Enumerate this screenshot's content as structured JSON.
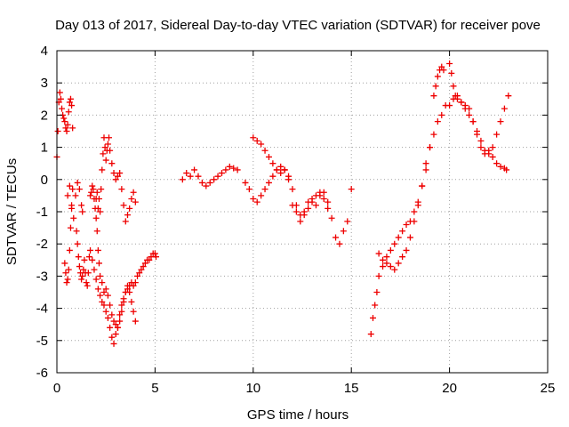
{
  "chart_data": {
    "type": "scatter",
    "title": "Day 013 of 2017, Sidereal Day-to-day VTEC variation (SDTVAR) for receiver pove",
    "xlabel": "GPS time / hours",
    "ylabel": "SDTVAR / TECUs",
    "xlim": [
      0,
      25
    ],
    "ylim": [
      -6,
      4
    ],
    "xticks": [
      "0",
      "5",
      "10",
      "15",
      "20",
      "25"
    ],
    "yticks": [
      "-6",
      "-5",
      "-4",
      "-3",
      "-2",
      "-1",
      "0",
      "1",
      "2",
      "3",
      "4"
    ],
    "grid": true,
    "marker": "+",
    "color": "#ee0000",
    "series": [
      {
        "name": "",
        "x": [
          0.0,
          0.05,
          0.1,
          0.15,
          0.2,
          0.25,
          0.3,
          0.35,
          0.4,
          0.45,
          0.5,
          0.55,
          0.6,
          0.65,
          0.7,
          0.75,
          0.8,
          0.4,
          0.45,
          0.5,
          0.55,
          0.6,
          0.65,
          0.7,
          0.75,
          0.8,
          0.55,
          0.65,
          0.75,
          0.85,
          0.95,
          1.05,
          1.15,
          1.25,
          1.3,
          1.0,
          1.05,
          1.1,
          1.15,
          1.2,
          1.25,
          1.3,
          1.35,
          1.4,
          1.45,
          1.5,
          1.55,
          1.6,
          1.65,
          1.7,
          1.8,
          1.9,
          2.0,
          2.1,
          2.2,
          2.3,
          2.4,
          2.5,
          2.6,
          2.7,
          2.8,
          2.9,
          3.0,
          3.1,
          3.2,
          3.3,
          3.4,
          3.5,
          3.6,
          3.7,
          3.8,
          3.9,
          4.0,
          4.1,
          4.2,
          4.3,
          4.4,
          4.5,
          4.6,
          4.7,
          4.8,
          4.9,
          5.0,
          5.05,
          1.7,
          1.75,
          1.8,
          1.85,
          1.9,
          1.95,
          2.0,
          2.05,
          2.1,
          2.15,
          2.2,
          2.3,
          2.4,
          2.5,
          2.6,
          2.7,
          2.8,
          2.9,
          3.0,
          3.1,
          3.2,
          3.3,
          3.4,
          3.5,
          3.6,
          3.7,
          3.8,
          3.9,
          4.0,
          2.0,
          2.05,
          2.1,
          2.15,
          2.2,
          2.25,
          2.3,
          2.35,
          2.4,
          2.45,
          2.5,
          2.55,
          2.6,
          2.65,
          2.7,
          2.8,
          2.9,
          3.0,
          3.1,
          3.2,
          3.3,
          3.4,
          3.5,
          3.6,
          3.7,
          3.8,
          3.9,
          4.0,
          6.4,
          6.6,
          6.8,
          7.0,
          7.2,
          7.4,
          7.6,
          7.8,
          8.0,
          8.2,
          8.4,
          8.6,
          8.8,
          9.0,
          9.2,
          9.6,
          9.8,
          10.0,
          10.2,
          10.4,
          10.6,
          10.8,
          11.0,
          11.2,
          11.4,
          11.6,
          10.0,
          10.2,
          10.4,
          10.6,
          10.8,
          11.0,
          11.2,
          11.4,
          11.6,
          11.8,
          11.6,
          11.8,
          12.0,
          12.2,
          12.4,
          12.6,
          12.8,
          13.0,
          13.2,
          13.4,
          13.6,
          13.8,
          14.0,
          14.2,
          14.4,
          14.6,
          14.8,
          15.0,
          12.0,
          12.2,
          12.4,
          12.6,
          12.8,
          13.0,
          13.2,
          13.4,
          13.6,
          13.8,
          16.0,
          16.1,
          16.2,
          16.3,
          16.4,
          16.6,
          16.8,
          17.0,
          17.2,
          17.4,
          17.6,
          17.8,
          18.0,
          18.2,
          18.4,
          18.6,
          18.8,
          19.0,
          19.2,
          19.4,
          19.6,
          19.8,
          20.0,
          20.2,
          20.4,
          20.6,
          20.8,
          21.0,
          21.2,
          21.4,
          21.6,
          21.8,
          22.0,
          22.2,
          22.4,
          22.6,
          22.8,
          22.9,
          16.4,
          16.6,
          16.8,
          17.0,
          17.2,
          17.4,
          17.6,
          17.8,
          18.0,
          18.2,
          18.4,
          18.6,
          18.8,
          19.0,
          19.2,
          19.3,
          19.4,
          19.5,
          19.6,
          19.7,
          20.0,
          20.1,
          20.2,
          20.3,
          20.4,
          20.6,
          20.8,
          21.0,
          21.2,
          21.4,
          21.6,
          21.8,
          22.0,
          22.2,
          22.4,
          22.6,
          22.8,
          23.0
        ],
        "y": [
          0.7,
          1.5,
          2.4,
          2.7,
          2.5,
          2.2,
          2.0,
          1.9,
          1.8,
          1.6,
          1.5,
          1.7,
          2.1,
          2.4,
          2.5,
          2.3,
          1.6,
          -2.6,
          -2.9,
          -3.2,
          -3.1,
          -2.8,
          -2.2,
          -1.5,
          -0.8,
          -0.3,
          -0.5,
          -0.2,
          -0.9,
          -1.2,
          -0.5,
          -0.1,
          -0.3,
          -0.8,
          -1.0,
          -1.6,
          -2.0,
          -2.4,
          -2.7,
          -2.9,
          -3.1,
          -3.0,
          -2.8,
          -2.5,
          -2.9,
          -3.2,
          -3.3,
          -2.9,
          -2.4,
          -2.2,
          -2.5,
          -2.8,
          -3.1,
          -3.4,
          -3.6,
          -3.8,
          -3.9,
          -4.1,
          -4.3,
          -4.6,
          -4.9,
          -5.1,
          -4.8,
          -4.6,
          -4.2,
          -3.9,
          -3.7,
          -3.5,
          -3.4,
          -3.3,
          -3.2,
          -3.3,
          -3.2,
          -3.0,
          -2.9,
          -2.8,
          -2.7,
          -2.6,
          -2.5,
          -2.5,
          -2.4,
          -2.3,
          -2.3,
          -2.4,
          -0.5,
          -0.4,
          -0.2,
          -0.3,
          -0.6,
          -0.9,
          -1.2,
          -1.6,
          -2.2,
          -2.6,
          -3.0,
          -3.2,
          -3.5,
          -3.4,
          -3.6,
          -3.9,
          -4.2,
          -4.4,
          -4.5,
          -4.6,
          -4.4,
          -4.1,
          -3.8,
          -3.5,
          -3.3,
          -3.5,
          -3.8,
          -4.1,
          -4.4,
          -0.6,
          -0.4,
          -0.9,
          -0.6,
          -1.0,
          -0.3,
          0.3,
          0.8,
          1.3,
          1.0,
          0.6,
          0.9,
          1.1,
          1.3,
          0.9,
          0.5,
          0.2,
          0.0,
          0.1,
          0.2,
          -0.3,
          -0.8,
          -1.3,
          -1.1,
          -0.9,
          -0.6,
          -0.4,
          -0.7,
          0.0,
          0.2,
          0.1,
          0.3,
          0.1,
          -0.1,
          -0.2,
          -0.1,
          0.0,
          0.1,
          0.2,
          0.3,
          0.4,
          0.35,
          0.3,
          -0.1,
          -0.3,
          -0.6,
          -0.7,
          -0.5,
          -0.3,
          -0.1,
          0.1,
          0.3,
          0.4,
          0.3,
          1.3,
          1.2,
          1.1,
          0.9,
          0.7,
          0.5,
          0.3,
          0.2,
          0.3,
          0.1,
          0.3,
          0.0,
          -0.3,
          -0.8,
          -1.1,
          -1.0,
          -0.7,
          -0.6,
          -0.8,
          -0.5,
          -0.4,
          -0.7,
          -1.2,
          -1.8,
          -2.0,
          -1.6,
          -1.3,
          -0.3,
          -0.8,
          -1.0,
          -1.3,
          -1.1,
          -0.9,
          -0.7,
          -0.5,
          -0.4,
          -0.6,
          -0.9,
          -4.8,
          -4.3,
          -3.9,
          -3.5,
          -3.0,
          -2.7,
          -2.4,
          -2.2,
          -2.0,
          -1.8,
          -1.6,
          -1.4,
          -1.3,
          -1.0,
          -0.7,
          -0.2,
          0.3,
          1.0,
          1.4,
          1.8,
          2.0,
          2.3,
          2.3,
          2.5,
          2.6,
          2.4,
          2.2,
          2.0,
          1.8,
          1.5,
          1.2,
          0.9,
          0.8,
          0.7,
          0.5,
          0.4,
          0.35,
          0.3,
          -2.3,
          -2.5,
          -2.6,
          -2.7,
          -2.8,
          -2.6,
          -2.4,
          -2.2,
          -1.8,
          -1.3,
          -0.8,
          -0.2,
          0.5,
          1.0,
          2.6,
          2.9,
          3.2,
          3.4,
          3.5,
          3.4,
          3.6,
          3.3,
          2.9,
          2.6,
          2.5,
          2.4,
          2.3,
          2.2,
          1.8,
          1.4,
          1.0,
          0.8,
          0.9,
          1.0,
          1.4,
          1.8,
          2.2,
          2.6
        ]
      }
    ]
  }
}
